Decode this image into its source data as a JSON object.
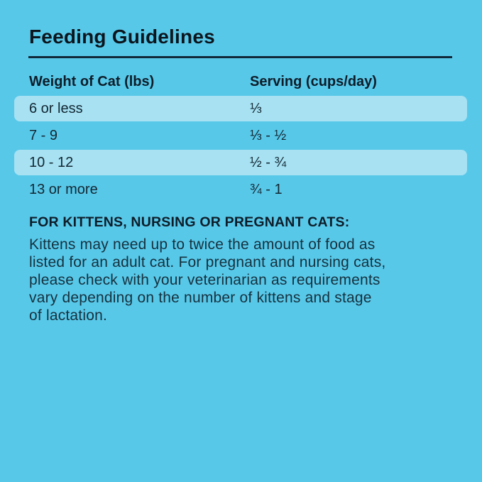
{
  "title": "Feeding Guidelines",
  "colors": {
    "background": "#58C8E9",
    "row_highlight": "#A7E1F2",
    "divider": "#10293A",
    "text_dark": "#0D1D29",
    "text_body": "#15313E"
  },
  "table": {
    "headers": [
      "Weight of Cat (lbs)",
      "Serving (cups/day)"
    ],
    "rows": [
      {
        "weight": "6 or less",
        "serving": "⅓",
        "highlighted": true
      },
      {
        "weight": "7 - 9",
        "serving": "⅓ - ½",
        "highlighted": false
      },
      {
        "weight": "10 - 12",
        "serving": "½ - ¾",
        "highlighted": true
      },
      {
        "weight": "13 or more",
        "serving": "¾ - 1",
        "highlighted": false
      }
    ]
  },
  "note": {
    "heading": "FOR KITTENS, NURSING OR PREGNANT CATS:",
    "body_lines": [
      "Kittens may need up to twice the amount of food as",
      "listed for an adult cat. For pregnant and nursing cats,",
      "please check with your veterinarian as requirements",
      "vary depending on the number of kittens and stage",
      "of lactation."
    ]
  }
}
